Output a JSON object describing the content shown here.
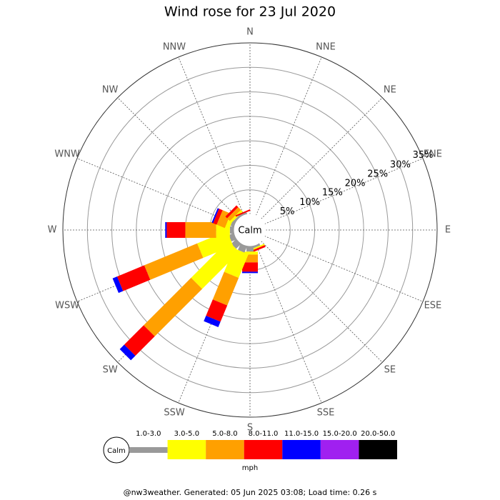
{
  "chart_data": {
    "type": "windrose",
    "title": "Wind rose for 23 Jul 2020",
    "calm_label": "Calm",
    "unit_label": "mph",
    "footer": "@nw3weather. Generated: 05 Jun 2025 03:08; Load time: 0.26 s",
    "categories": [
      "N",
      "NNE",
      "NE",
      "ENE",
      "E",
      "ESE",
      "SE",
      "SSE",
      "S",
      "SSW",
      "SW",
      "WSW",
      "W",
      "WNW",
      "NW",
      "NNW"
    ],
    "rlim": [
      0,
      35
    ],
    "rticks": [
      {
        "value": 5,
        "label": "5%"
      },
      {
        "value": 10,
        "label": "10%"
      },
      {
        "value": 15,
        "label": "15%"
      },
      {
        "value": 20,
        "label": "20%"
      },
      {
        "value": 25,
        "label": "25%"
      },
      {
        "value": 30,
        "label": "30%"
      },
      {
        "value": 35,
        "label": "35%"
      }
    ],
    "series": [
      {
        "name": "1.0-3.0",
        "color": "#999999",
        "values": [
          0,
          0,
          0,
          0,
          0,
          0,
          0,
          0.5,
          1.2,
          1.5,
          1.5,
          1.2,
          0.9,
          0.8,
          0.5,
          0.4
        ]
      },
      {
        "name": "3.0-5.0",
        "color": "#ffff00",
        "values": [
          0,
          0,
          0,
          0,
          0,
          0,
          0,
          0.3,
          0.6,
          5.2,
          10.7,
          6.6,
          2.8,
          0.9,
          0.5,
          0
        ]
      },
      {
        "name": "5.0-8.0",
        "color": "#ffa000",
        "values": [
          0,
          0,
          0,
          0,
          0,
          0,
          0,
          0,
          1.6,
          6.1,
          13.7,
          11.7,
          6.3,
          1.8,
          0.8,
          0
        ]
      },
      {
        "name": "8.0-11.0",
        "color": "#ff0000",
        "values": [
          0,
          0,
          0,
          0,
          0,
          0,
          0,
          0.4,
          1.9,
          3.6,
          5.6,
          6.0,
          3.8,
          0.8,
          0.5,
          0.3
        ]
      },
      {
        "name": "11.0-15.0",
        "color": "#0000ff",
        "values": [
          0,
          0,
          0,
          0,
          0,
          0,
          0,
          0,
          0.3,
          1.2,
          1.3,
          1.0,
          0.3,
          0.3,
          0,
          0
        ]
      },
      {
        "name": "15.0-20.0",
        "color": "#a020f0",
        "values": [
          0,
          0,
          0,
          0,
          0,
          0,
          0,
          0,
          0,
          0,
          0,
          0,
          0,
          0,
          0,
          0
        ]
      },
      {
        "name": "20.0-50.0",
        "color": "#000000",
        "values": [
          0,
          0,
          0,
          0,
          0,
          0,
          0,
          0,
          0,
          0,
          0,
          0,
          0,
          0,
          0,
          0
        ]
      }
    ]
  }
}
